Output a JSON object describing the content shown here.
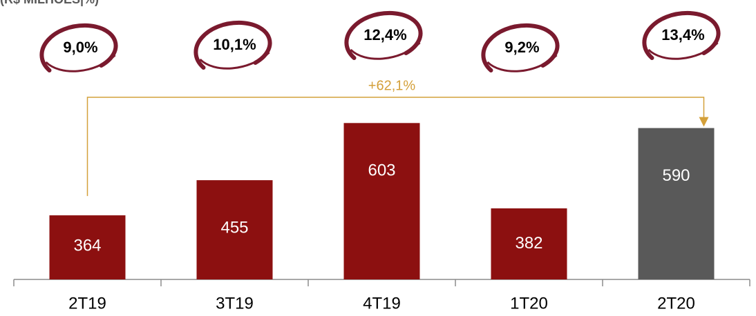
{
  "chart_data": {
    "type": "bar",
    "title": "(R$ MILHÕES|%)",
    "categories": [
      "2T19",
      "3T19",
      "4T19",
      "1T20",
      "2T20"
    ],
    "values": [
      364,
      455,
      603,
      382,
      590
    ],
    "colors": [
      "#8c1010",
      "#8c1010",
      "#8c1010",
      "#8c1010",
      "#595959"
    ],
    "ylim": [
      198,
      650
    ],
    "margins": {
      "values": [
        9.0,
        10.1,
        12.4,
        9.2,
        13.4
      ],
      "value_labels": [
        "9,0%",
        "10,1%",
        "12,4%",
        "9,2%",
        "13,4%"
      ],
      "color": "#7a1a2e"
    },
    "growth": {
      "value": 62.1,
      "label": "+62,1%",
      "color": "#d4a03a"
    }
  }
}
